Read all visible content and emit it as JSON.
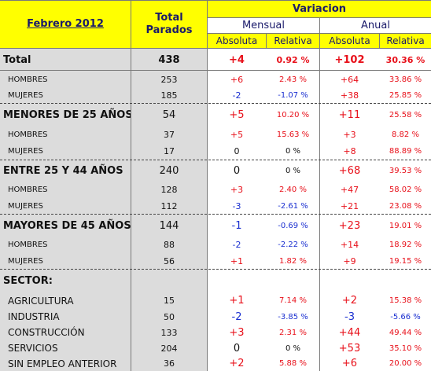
{
  "header": {
    "month": "Febrero 2012",
    "total_line1": "Total",
    "total_line2": "Parados",
    "variacion": "Variacion",
    "mensual": "Mensual",
    "anual": "Anual",
    "absoluta1": "Absoluta",
    "relativa1": "Relativa",
    "absoluta2": "Absoluta",
    "relativa2": "Relativa"
  },
  "rows": [
    {
      "label": "Total",
      "total": "438",
      "m_abs": "+4",
      "m_rel": "0.92 %",
      "a_abs": "+102",
      "a_rel": "30.36 %"
    },
    {
      "label": "HOMBRES",
      "total": "253",
      "m_abs": "+6",
      "m_rel": "2.43 %",
      "a_abs": "+64",
      "a_rel": "33.86 %"
    },
    {
      "label": "MUJERES",
      "total": "185",
      "m_abs": "-2",
      "m_rel": "-1.07 %",
      "a_abs": "+38",
      "a_rel": "25.85 %"
    },
    {
      "label": "MENORES DE 25 AÑOS:",
      "total": "54",
      "m_abs": "+5",
      "m_rel": "10.20 %",
      "a_abs": "+11",
      "a_rel": "25.58 %"
    },
    {
      "label": "HOMBRES",
      "total": "37",
      "m_abs": "+5",
      "m_rel": "15.63 %",
      "a_abs": "+3",
      "a_rel": "8.82 %"
    },
    {
      "label": "MUJERES",
      "total": "17",
      "m_abs": "0",
      "m_rel": "0 %",
      "a_abs": "+8",
      "a_rel": "88.89 %"
    },
    {
      "label": "ENTRE 25 Y 44 AÑOS",
      "total": "240",
      "m_abs": "0",
      "m_rel": "0 %",
      "a_abs": "+68",
      "a_rel": "39.53 %"
    },
    {
      "label": "HOMBRES",
      "total": "128",
      "m_abs": "+3",
      "m_rel": "2.40 %",
      "a_abs": "+47",
      "a_rel": "58.02 %"
    },
    {
      "label": "MUJERES",
      "total": "112",
      "m_abs": "-3",
      "m_rel": "-2.61 %",
      "a_abs": "+21",
      "a_rel": "23.08 %"
    },
    {
      "label": "MAYORES DE 45 AÑOS",
      "total": "144",
      "m_abs": "-1",
      "m_rel": "-0.69 %",
      "a_abs": "+23",
      "a_rel": "19.01 %"
    },
    {
      "label": "HOMBRES",
      "total": "88",
      "m_abs": "-2",
      "m_rel": "-2.22 %",
      "a_abs": "+14",
      "a_rel": "18.92 %"
    },
    {
      "label": "MUJERES",
      "total": "56",
      "m_abs": "+1",
      "m_rel": "1.82 %",
      "a_abs": "+9",
      "a_rel": "19.15 %"
    },
    {
      "label": "SECTOR:",
      "total": "",
      "m_abs": "",
      "m_rel": "",
      "a_abs": "",
      "a_rel": ""
    },
    {
      "label": "AGRICULTURA",
      "total": "15",
      "m_abs": "+1",
      "m_rel": "7.14 %",
      "a_abs": "+2",
      "a_rel": "15.38 %"
    },
    {
      "label": "INDUSTRIA",
      "total": "50",
      "m_abs": "-2",
      "m_rel": "-3.85 %",
      "a_abs": "-3",
      "a_rel": "-5.66 %"
    },
    {
      "label": "CONSTRUCCIÓN",
      "total": "133",
      "m_abs": "+3",
      "m_rel": "2.31 %",
      "a_abs": "+44",
      "a_rel": "49.44 %"
    },
    {
      "label": "SERVICIOS",
      "total": "204",
      "m_abs": "0",
      "m_rel": "0 %",
      "a_abs": "+53",
      "a_rel": "35.10 %"
    },
    {
      "label": "SIN EMPLEO ANTERIOR",
      "total": "36",
      "m_abs": "+2",
      "m_rel": "5.88 %",
      "a_abs": "+6",
      "a_rel": "20.00 %"
    }
  ],
  "colors": {
    "positive": "#e8101a",
    "negative": "#1a2fd0",
    "zero": "#111111",
    "header": "#ffff00",
    "label_bg": "#dcdcdc"
  }
}
